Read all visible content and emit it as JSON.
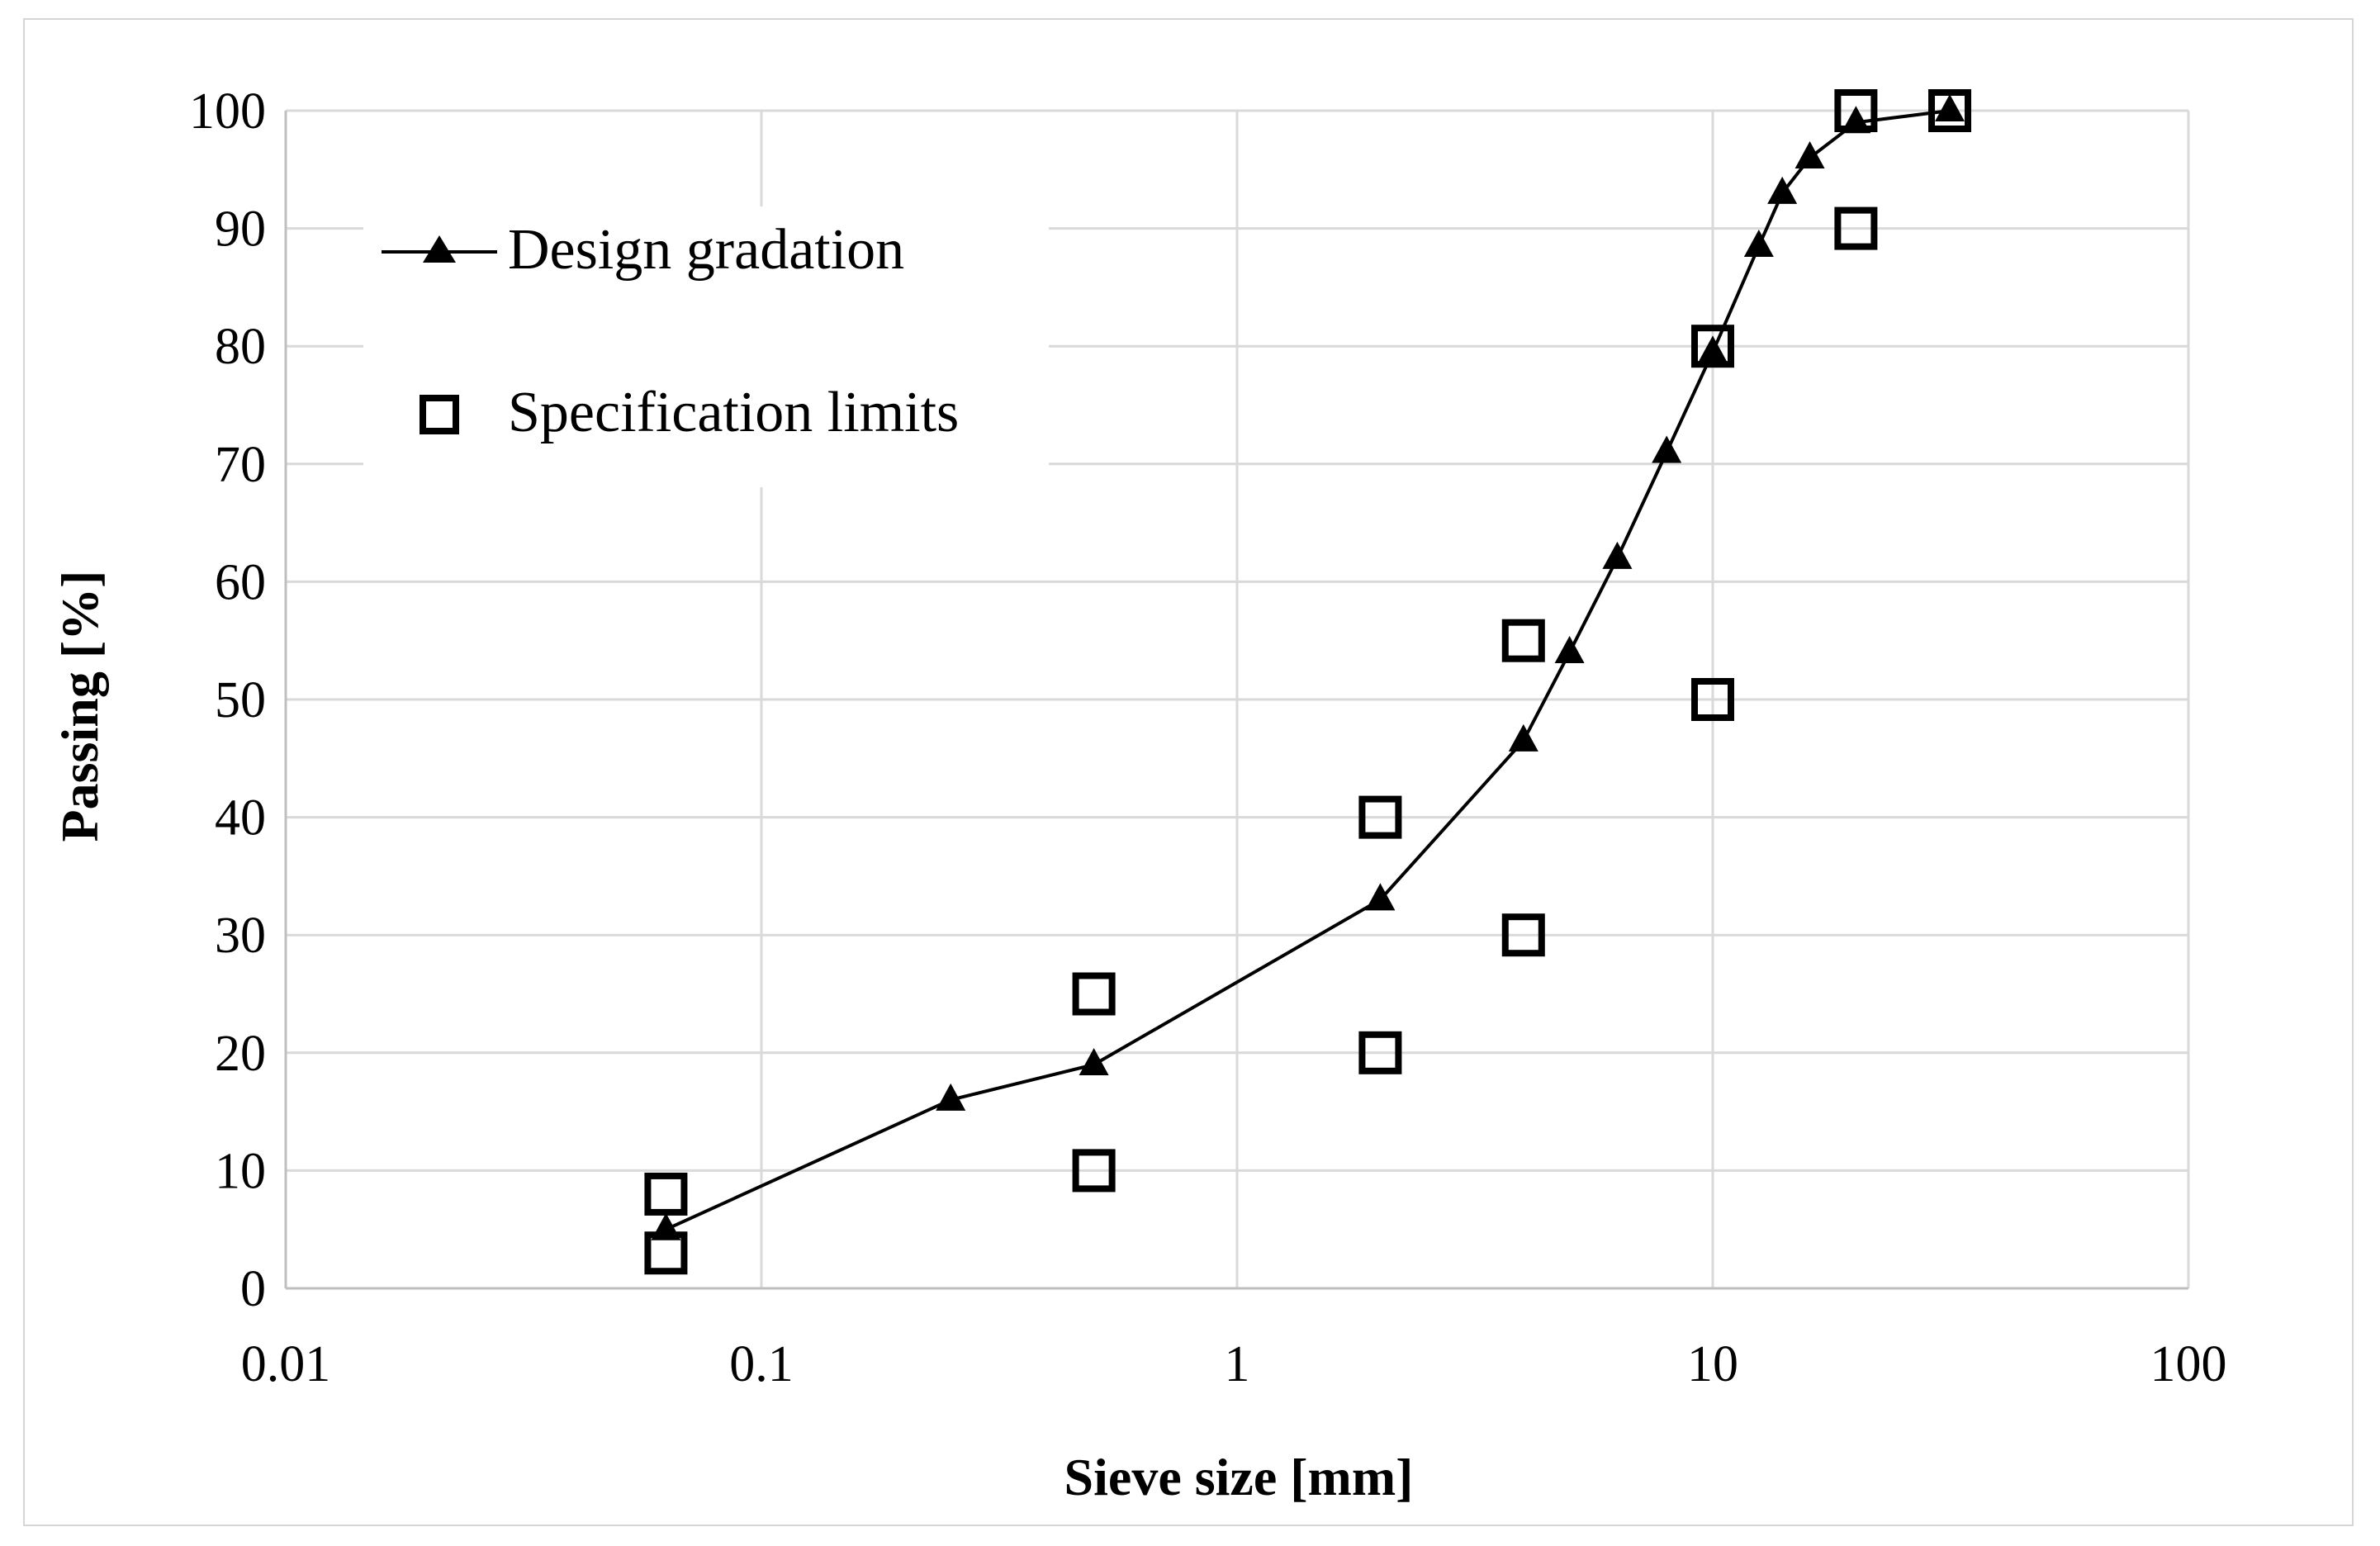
{
  "chart_data": {
    "type": "scatter",
    "title": "",
    "xlabel": "Sieve size [mm]",
    "ylabel": "Passing [%]",
    "x_scale": "log",
    "xlim": [
      0.01,
      100
    ],
    "ylim": [
      0,
      100
    ],
    "grid": true,
    "legend_position": "top-left",
    "x_ticks": [
      "0.01",
      "0.1",
      "1",
      "10",
      "100"
    ],
    "y_ticks": [
      "0",
      "10",
      "20",
      "30",
      "40",
      "50",
      "60",
      "70",
      "80",
      "90",
      "100"
    ],
    "series": [
      {
        "name": "Design gradation",
        "marker": "triangle",
        "line": true,
        "x": [
          0.063,
          0.25,
          0.5,
          2,
          4,
          5,
          6.3,
          8,
          10,
          12.5,
          14,
          16,
          20,
          31.5
        ],
        "y": [
          5,
          16,
          19,
          33,
          46.5,
          54,
          62,
          71,
          79.5,
          88.5,
          93,
          96,
          99,
          100
        ]
      },
      {
        "name": "Specification limits",
        "marker": "square",
        "line": false,
        "x": [
          0.063,
          0.063,
          0.5,
          0.5,
          2,
          2,
          4,
          4,
          10,
          10,
          20,
          20,
          31.5
        ],
        "y": [
          3,
          8,
          10,
          25,
          20,
          40,
          30,
          55,
          50,
          80,
          90,
          100,
          100
        ]
      }
    ],
    "colors": {
      "line": "#000000",
      "grid": "#d9d9d9",
      "axis": "#bfbfbf",
      "frame": "#d6d6d6"
    }
  }
}
